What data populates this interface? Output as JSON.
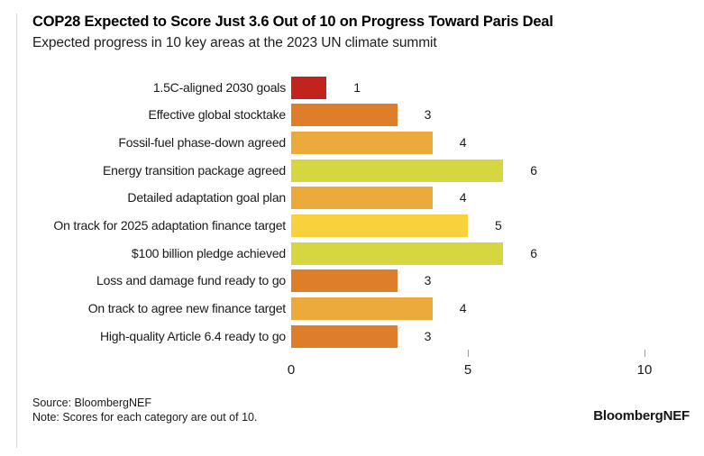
{
  "header": {
    "title": "COP28 Expected to Score Just 3.6 Out of 10 on Progress Toward Paris Deal",
    "subtitle": "Expected progress in 10 key areas at the 2023 UN climate summit"
  },
  "chart_data": {
    "type": "bar",
    "orientation": "horizontal",
    "title": "COP28 Expected to Score Just 3.6 Out of 10 on Progress Toward Paris Deal",
    "subtitle": "Expected progress in 10 key areas at the 2023 UN climate summit",
    "categories": [
      "1.5C-aligned 2030 goals",
      "Effective global stocktake",
      "Fossil-fuel phase-down agreed",
      "Energy transition package agreed",
      "Detailed adaptation goal plan",
      "On track for 2025 adaptation finance target",
      "$100 billion pledge achieved",
      "Loss and damage fund ready to go",
      "On track to agree new finance target",
      "High-quality Article 6.4 ready to go"
    ],
    "values": [
      1,
      3,
      4,
      6,
      4,
      5,
      6,
      3,
      4,
      3
    ],
    "bar_colors": [
      "#c2231d",
      "#de7e2a",
      "#ecaa3c",
      "#d5d640",
      "#ecaa3c",
      "#f8d23c",
      "#d5d640",
      "#de7e2a",
      "#ecaa3c",
      "#de7e2a"
    ],
    "value_labels": [
      "1",
      "3",
      "4",
      "6",
      "4",
      "5",
      "6",
      "3",
      "4",
      "3"
    ],
    "xlim": [
      0,
      10
    ],
    "x_ticks": [
      "0",
      "5",
      "10"
    ],
    "x_tick_values": [
      0,
      5,
      10
    ],
    "grid": false,
    "legend": "none",
    "value_labels_shown": true
  },
  "footer": {
    "source": "Source: BloombergNEF",
    "note": "Note: Scores for each category are out of 10.",
    "logo": "BloombergNEF"
  }
}
